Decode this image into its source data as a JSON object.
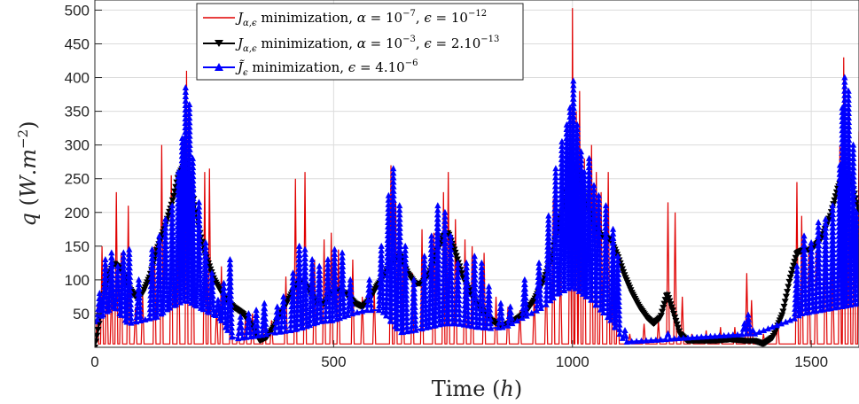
{
  "chart_data": {
    "type": "line",
    "xlabel": "Time (h)",
    "ylabel": "q (W.m⁻²)",
    "xlim": [
      0,
      1600
    ],
    "ylim": [
      0,
      515
    ],
    "xticks": [
      0,
      500,
      1000,
      1500
    ],
    "yticks": [
      50,
      100,
      150,
      200,
      250,
      300,
      350,
      400,
      450,
      500
    ],
    "grid": true,
    "legend_position": "top-center",
    "series": [
      {
        "name": "Jα,ε minimization, α = 10⁻⁷, ε = 10⁻¹²",
        "color": "#e00000",
        "marker": "none",
        "baseline": 5,
        "spikes": [
          [
            5,
            60
          ],
          [
            15,
            150
          ],
          [
            25,
            120
          ],
          [
            35,
            90
          ],
          [
            45,
            230
          ],
          [
            55,
            140
          ],
          [
            70,
            210
          ],
          [
            85,
            60
          ],
          [
            100,
            80
          ],
          [
            125,
            150
          ],
          [
            140,
            300
          ],
          [
            160,
            255
          ],
          [
            175,
            190
          ],
          [
            192,
            410
          ],
          [
            205,
            250
          ],
          [
            230,
            260
          ],
          [
            240,
            265
          ],
          [
            255,
            60
          ],
          [
            265,
            120
          ],
          [
            285,
            120
          ],
          [
            300,
            25
          ],
          [
            315,
            40
          ],
          [
            330,
            50
          ],
          [
            355,
            60
          ],
          [
            370,
            40
          ],
          [
            400,
            105
          ],
          [
            420,
            250
          ],
          [
            440,
            260
          ],
          [
            460,
            130
          ],
          [
            480,
            160
          ],
          [
            495,
            170
          ],
          [
            510,
            145
          ],
          [
            540,
            130
          ],
          [
            560,
            75
          ],
          [
            585,
            85
          ],
          [
            620,
            270
          ],
          [
            630,
            215
          ],
          [
            645,
            120
          ],
          [
            665,
            110
          ],
          [
            685,
            175
          ],
          [
            710,
            170
          ],
          [
            730,
            230
          ],
          [
            740,
            260
          ],
          [
            755,
            190
          ],
          [
            775,
            160
          ],
          [
            790,
            150
          ],
          [
            815,
            140
          ],
          [
            840,
            75
          ],
          [
            865,
            60
          ],
          [
            890,
            55
          ],
          [
            920,
            80
          ],
          [
            945,
            110
          ],
          [
            960,
            220
          ],
          [
            975,
            130
          ],
          [
            995,
            265
          ],
          [
            1000,
            503
          ],
          [
            1008,
            350
          ],
          [
            1015,
            380
          ],
          [
            1025,
            280
          ],
          [
            1040,
            300
          ],
          [
            1050,
            260
          ],
          [
            1060,
            230
          ],
          [
            1075,
            260
          ],
          [
            1085,
            150
          ],
          [
            1095,
            110
          ],
          [
            1120,
            20
          ],
          [
            1150,
            35
          ],
          [
            1180,
            40
          ],
          [
            1200,
            215
          ],
          [
            1215,
            200
          ],
          [
            1230,
            75
          ],
          [
            1250,
            20
          ],
          [
            1280,
            25
          ],
          [
            1310,
            30
          ],
          [
            1340,
            30
          ],
          [
            1365,
            110
          ],
          [
            1375,
            70
          ],
          [
            1400,
            20
          ],
          [
            1430,
            40
          ],
          [
            1470,
            245
          ],
          [
            1480,
            195
          ],
          [
            1495,
            150
          ],
          [
            1510,
            140
          ],
          [
            1530,
            180
          ],
          [
            1545,
            120
          ],
          [
            1560,
            300
          ],
          [
            1568,
            430
          ],
          [
            1580,
            350
          ],
          [
            1590,
            250
          ],
          [
            1600,
            320
          ]
        ]
      },
      {
        "name": "Jα,ε minimization, α = 10⁻³, ε = 2.10⁻¹³",
        "color": "#000000",
        "marker": "triangle-down",
        "points": [
          [
            0,
            0
          ],
          [
            10,
            40
          ],
          [
            25,
            100
          ],
          [
            40,
            125
          ],
          [
            55,
            115
          ],
          [
            70,
            90
          ],
          [
            85,
            75
          ],
          [
            100,
            80
          ],
          [
            115,
            105
          ],
          [
            130,
            145
          ],
          [
            145,
            175
          ],
          [
            160,
            210
          ],
          [
            175,
            255
          ],
          [
            190,
            275
          ],
          [
            200,
            250
          ],
          [
            215,
            185
          ],
          [
            230,
            140
          ],
          [
            250,
            100
          ],
          [
            270,
            75
          ],
          [
            290,
            60
          ],
          [
            310,
            50
          ],
          [
            330,
            30
          ],
          [
            345,
            10
          ],
          [
            360,
            15
          ],
          [
            375,
            30
          ],
          [
            390,
            50
          ],
          [
            405,
            70
          ],
          [
            420,
            90
          ],
          [
            435,
            100
          ],
          [
            450,
            80
          ],
          [
            465,
            65
          ],
          [
            480,
            65
          ],
          [
            495,
            80
          ],
          [
            510,
            85
          ],
          [
            525,
            80
          ],
          [
            545,
            65
          ],
          [
            560,
            60
          ],
          [
            575,
            70
          ],
          [
            590,
            90
          ],
          [
            605,
            105
          ],
          [
            620,
            125
          ],
          [
            640,
            135
          ],
          [
            655,
            110
          ],
          [
            670,
            95
          ],
          [
            685,
            95
          ],
          [
            700,
            110
          ],
          [
            715,
            140
          ],
          [
            730,
            165
          ],
          [
            740,
            170
          ],
          [
            755,
            140
          ],
          [
            770,
            105
          ],
          [
            790,
            75
          ],
          [
            810,
            55
          ],
          [
            830,
            40
          ],
          [
            850,
            32
          ],
          [
            865,
            35
          ],
          [
            880,
            40
          ],
          [
            900,
            50
          ],
          [
            920,
            70
          ],
          [
            940,
            100
          ],
          [
            955,
            130
          ],
          [
            970,
            180
          ],
          [
            985,
            220
          ],
          [
            1000,
            270
          ],
          [
            1015,
            255
          ],
          [
            1030,
            210
          ],
          [
            1045,
            180
          ],
          [
            1060,
            165
          ],
          [
            1080,
            160
          ],
          [
            1095,
            135
          ],
          [
            1110,
            105
          ],
          [
            1125,
            80
          ],
          [
            1140,
            60
          ],
          [
            1155,
            45
          ],
          [
            1170,
            35
          ],
          [
            1185,
            45
          ],
          [
            1198,
            80
          ],
          [
            1210,
            55
          ],
          [
            1225,
            20
          ],
          [
            1240,
            10
          ],
          [
            1270,
            10
          ],
          [
            1300,
            10
          ],
          [
            1330,
            12
          ],
          [
            1360,
            10
          ],
          [
            1380,
            10
          ],
          [
            1400,
            5
          ],
          [
            1420,
            15
          ],
          [
            1440,
            50
          ],
          [
            1455,
            100
          ],
          [
            1470,
            140
          ],
          [
            1485,
            145
          ],
          [
            1500,
            145
          ],
          [
            1520,
            160
          ],
          [
            1540,
            195
          ],
          [
            1555,
            235
          ],
          [
            1570,
            258
          ],
          [
            1585,
            245
          ],
          [
            1600,
            200
          ]
        ]
      },
      {
        "name": "J̃ε minimization, ε = 4.10⁻⁶",
        "color": "#0000ff",
        "marker": "triangle-up",
        "baseline_points": [
          [
            0,
            38
          ],
          [
            20,
            50
          ],
          [
            40,
            60
          ],
          [
            70,
            35
          ],
          [
            100,
            40
          ],
          [
            130,
            45
          ],
          [
            160,
            60
          ],
          [
            190,
            70
          ],
          [
            230,
            55
          ],
          [
            260,
            45
          ],
          [
            290,
            12
          ],
          [
            320,
            15
          ],
          [
            350,
            18
          ],
          [
            380,
            22
          ],
          [
            410,
            25
          ],
          [
            440,
            30
          ],
          [
            470,
            38
          ],
          [
            500,
            40
          ],
          [
            540,
            50
          ],
          [
            570,
            55
          ],
          [
            600,
            55
          ],
          [
            640,
            22
          ],
          [
            670,
            25
          ],
          [
            700,
            30
          ],
          [
            730,
            35
          ],
          [
            760,
            35
          ],
          [
            800,
            30
          ],
          [
            830,
            28
          ],
          [
            860,
            30
          ],
          [
            900,
            45
          ],
          [
            940,
            60
          ],
          [
            970,
            80
          ],
          [
            1000,
            90
          ],
          [
            1040,
            70
          ],
          [
            1080,
            40
          ],
          [
            1110,
            8
          ],
          [
            1140,
            8
          ],
          [
            1170,
            10
          ],
          [
            1200,
            12
          ],
          [
            1240,
            15
          ],
          [
            1280,
            12
          ],
          [
            1320,
            12
          ],
          [
            1360,
            20
          ],
          [
            1400,
            20
          ],
          [
            1440,
            30
          ],
          [
            1480,
            50
          ],
          [
            1520,
            55
          ],
          [
            1560,
            60
          ],
          [
            1600,
            65
          ]
        ],
        "peaks": [
          [
            10,
            80
          ],
          [
            22,
            130
          ],
          [
            35,
            140
          ],
          [
            48,
            120
          ],
          [
            60,
            140
          ],
          [
            72,
            145
          ],
          [
            92,
            100
          ],
          [
            120,
            145
          ],
          [
            135,
            165
          ],
          [
            148,
            190
          ],
          [
            162,
            210
          ],
          [
            175,
            260
          ],
          [
            183,
            310
          ],
          [
            190,
            385
          ],
          [
            198,
            360
          ],
          [
            205,
            280
          ],
          [
            218,
            215
          ],
          [
            232,
            155
          ],
          [
            245,
            110
          ],
          [
            258,
            70
          ],
          [
            270,
            95
          ],
          [
            283,
            130
          ],
          [
            305,
            45
          ],
          [
            322,
            50
          ],
          [
            338,
            55
          ],
          [
            355,
            65
          ],
          [
            382,
            60
          ],
          [
            395,
            75
          ],
          [
            415,
            110
          ],
          [
            428,
            150
          ],
          [
            440,
            145
          ],
          [
            455,
            130
          ],
          [
            470,
            120
          ],
          [
            488,
            130
          ],
          [
            502,
            145
          ],
          [
            518,
            140
          ],
          [
            535,
            100
          ],
          [
            575,
            100
          ],
          [
            600,
            150
          ],
          [
            615,
            225
          ],
          [
            625,
            265
          ],
          [
            638,
            210
          ],
          [
            650,
            150
          ],
          [
            668,
            100
          ],
          [
            690,
            135
          ],
          [
            705,
            165
          ],
          [
            718,
            210
          ],
          [
            733,
            200
          ],
          [
            745,
            165
          ],
          [
            760,
            125
          ],
          [
            778,
            125
          ],
          [
            795,
            135
          ],
          [
            810,
            125
          ],
          [
            825,
            90
          ],
          [
            850,
            65
          ],
          [
            870,
            60
          ],
          [
            900,
            100
          ],
          [
            930,
            125
          ],
          [
            950,
            195
          ],
          [
            965,
            265
          ],
          [
            978,
            305
          ],
          [
            988,
            330
          ],
          [
            995,
            355
          ],
          [
            1002,
            395
          ],
          [
            1010,
            330
          ],
          [
            1018,
            290
          ],
          [
            1025,
            260
          ],
          [
            1035,
            280
          ],
          [
            1045,
            240
          ],
          [
            1055,
            225
          ],
          [
            1070,
            210
          ],
          [
            1085,
            175
          ],
          [
            1095,
            135
          ],
          [
            1110,
            25
          ],
          [
            1200,
            20
          ],
          [
            1360,
            35
          ],
          [
            1368,
            48
          ],
          [
            1378,
            25
          ],
          [
            1470,
            120
          ],
          [
            1485,
            165
          ],
          [
            1500,
            155
          ],
          [
            1515,
            185
          ],
          [
            1530,
            190
          ],
          [
            1545,
            210
          ],
          [
            1560,
            270
          ],
          [
            1565,
            355
          ],
          [
            1570,
            400
          ],
          [
            1578,
            380
          ],
          [
            1588,
            300
          ],
          [
            1595,
            200
          ],
          [
            1600,
            155
          ]
        ]
      }
    ]
  }
}
